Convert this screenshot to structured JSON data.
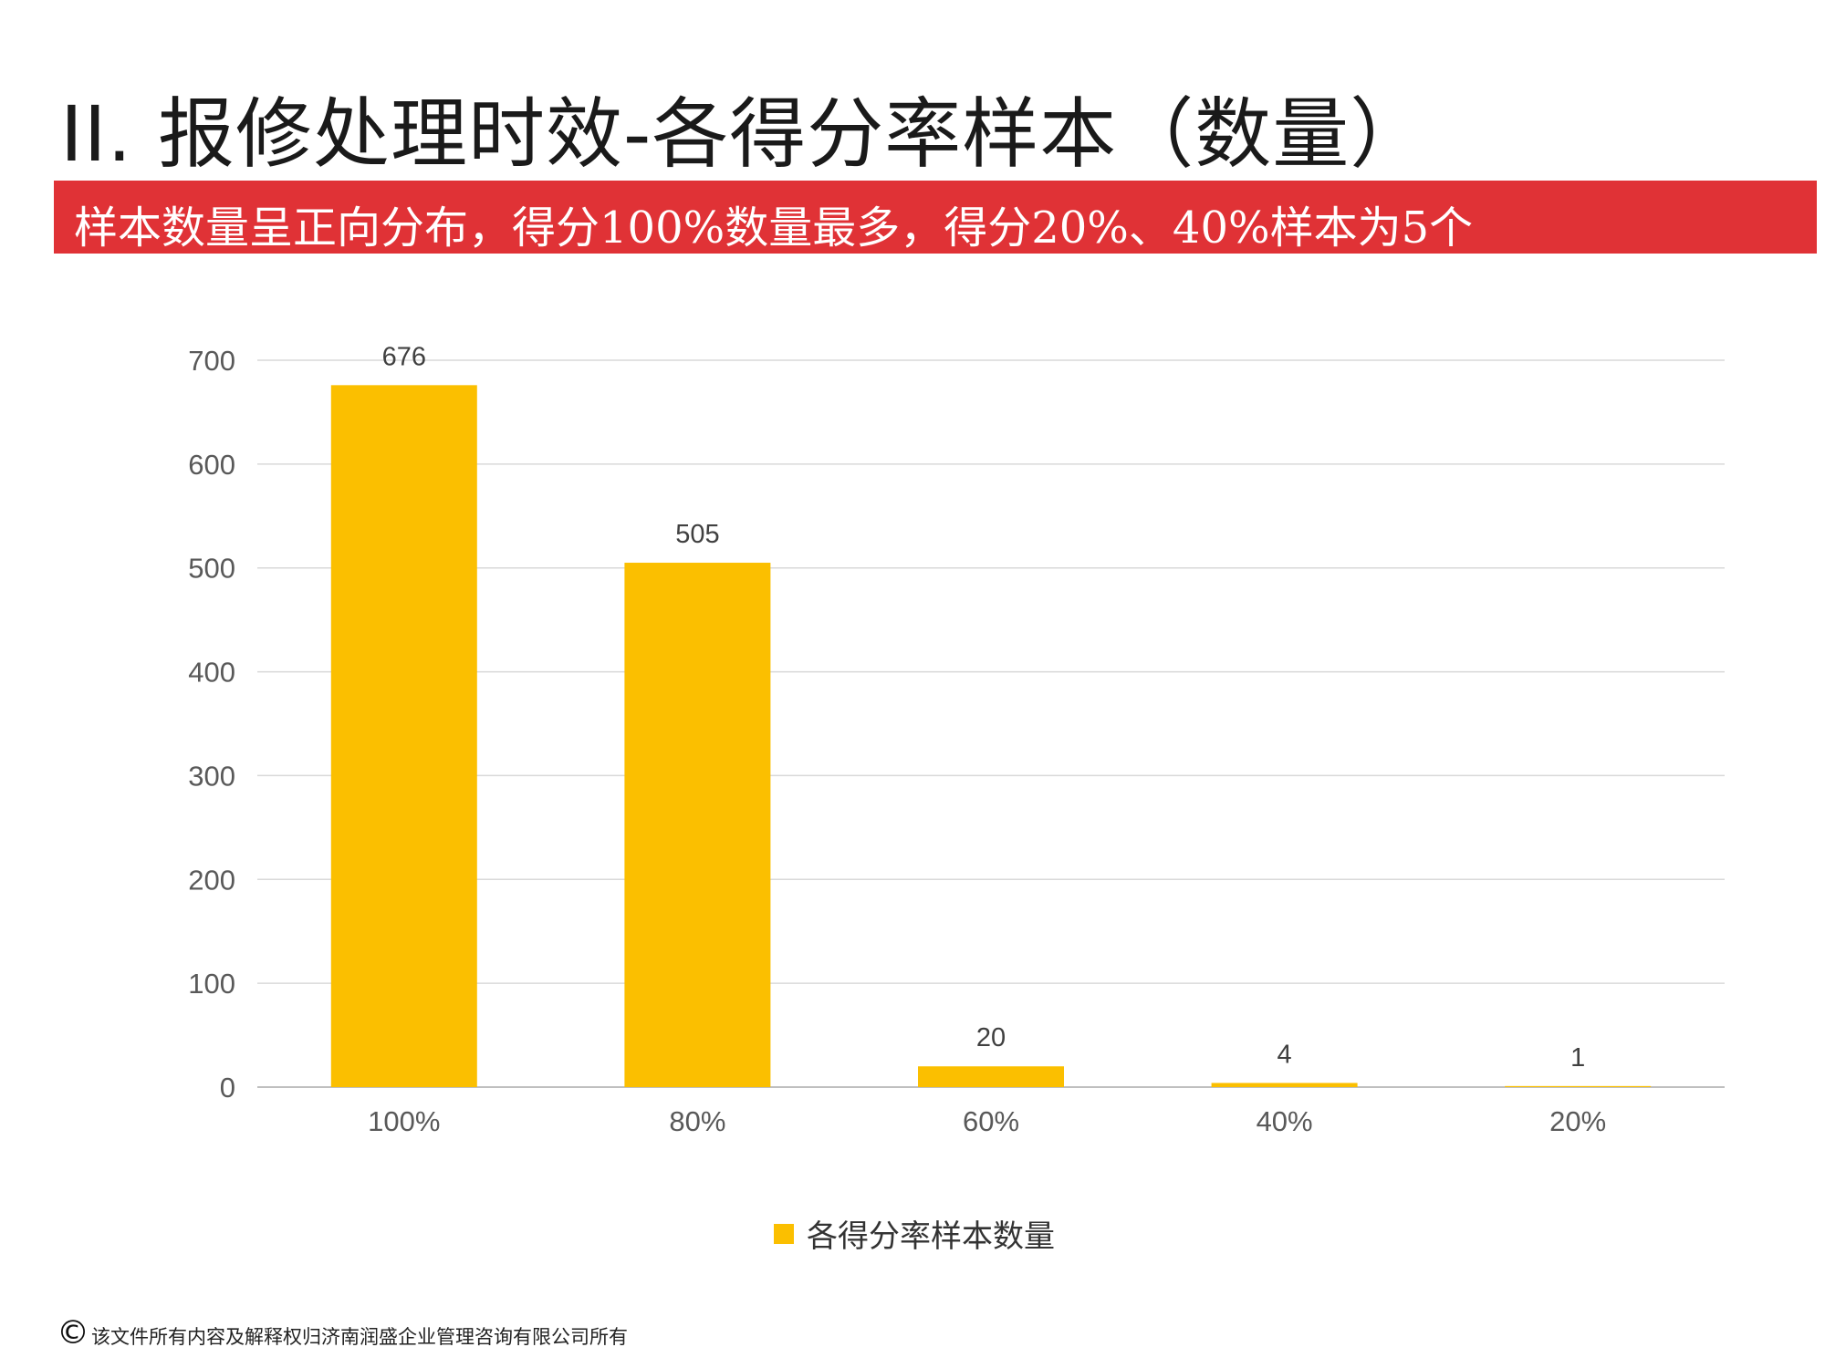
{
  "slide": {
    "title": "II. 报修处理时效-各得分率样本（数量）",
    "banner": "样本数量呈正向分布，得分100%数量最多，得分20%、40%样本为5个",
    "footer_symbol": "©",
    "footer_text": "该文件所有内容及解释权归济南润盛企业管理咨询有限公司所有"
  },
  "chart_data": {
    "type": "bar",
    "title": "",
    "xlabel": "",
    "ylabel": "",
    "categories": [
      "100%",
      "80%",
      "60%",
      "40%",
      "20%"
    ],
    "series": [
      {
        "name": "各得分率样本数量",
        "values": [
          676,
          505,
          20,
          4,
          1
        ],
        "color": "#fbbf00"
      }
    ],
    "ylim": [
      0,
      700
    ],
    "yticks": [
      0,
      100,
      200,
      300,
      400,
      500,
      600,
      700
    ],
    "grid": true,
    "data_labels": true,
    "legend_position": "bottom-center"
  }
}
